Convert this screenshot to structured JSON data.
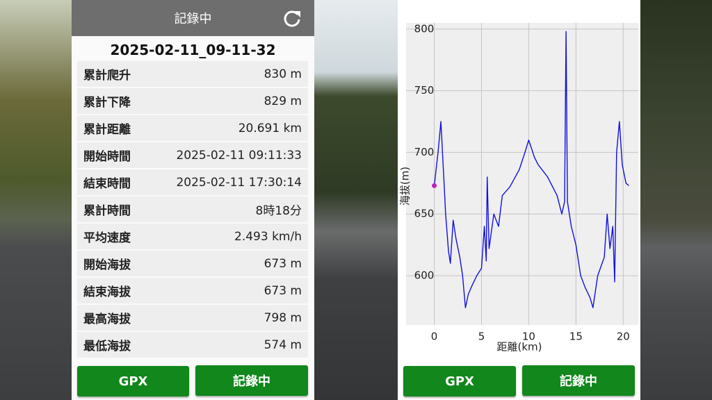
{
  "left_panel": {
    "header": {
      "title": "記錄中"
    },
    "track_name": "2025-02-11_09-11-32",
    "stats": [
      [
        "累計爬升",
        "830 m"
      ],
      [
        "累計下降",
        "829 m"
      ],
      [
        "累計距離",
        "20.691 km"
      ],
      [
        "開始時間",
        "2025-02-11 09:11:33"
      ],
      [
        "結束時間",
        "2025-02-11 17:30:14"
      ],
      [
        "累計時間",
        "8時18分"
      ],
      [
        "平均速度",
        "2.493 km/h"
      ],
      [
        "開始海拔",
        "673 m"
      ],
      [
        "結束海拔",
        "673 m"
      ],
      [
        "最高海拔",
        "798 m"
      ],
      [
        "最低海拔",
        "574 m"
      ]
    ],
    "buttons": [
      "GPX",
      "記錄中"
    ]
  },
  "right_panel": {
    "buttons": [
      "GPX",
      "記錄中"
    ]
  },
  "chart_data": {
    "type": "line",
    "x_label": "距離(km)",
    "y_label": "海拔(m)",
    "x": [
      0,
      0.4,
      0.7,
      1.0,
      1.2,
      1.5,
      1.7,
      2.0,
      2.3,
      2.7,
      3.0,
      3.3,
      3.6,
      4.0,
      4.5,
      5.0,
      5.3,
      5.5,
      5.6,
      5.8,
      6.3,
      6.8,
      7.2,
      8.0,
      9.0,
      9.6,
      10.0,
      10.6,
      11.0,
      12.0,
      13.0,
      13.5,
      13.8,
      13.95,
      14.1,
      14.5,
      15.0,
      15.5,
      16.0,
      16.5,
      16.8,
      17.3,
      18.0,
      18.3,
      18.6,
      18.9,
      19.1,
      19.3,
      19.6,
      19.9,
      20.3,
      20.6
    ],
    "series": [
      {
        "color": "#1010e0",
        "values": [
          673,
          700,
          725,
          680,
          650,
          620,
          610,
          645,
          630,
          615,
          600,
          574,
          585,
          592,
          600,
          606,
          640,
          612,
          680,
          622,
          650,
          640,
          665,
          672,
          686,
          700,
          710,
          696,
          690,
          680,
          665,
          650,
          660,
          798,
          660,
          640,
          625,
          600,
          590,
          582,
          574,
          600,
          615,
          650,
          622,
          640,
          595,
          700,
          725,
          690,
          675,
          673
        ]
      }
    ],
    "start_marker": {
      "x": 0,
      "y": 673,
      "color": "#c020c0"
    },
    "xlim": [
      -1,
      21.6
    ],
    "ylim": [
      560,
      805
    ],
    "xticks": [
      0,
      5,
      10,
      15,
      20
    ],
    "yticks": [
      600,
      650,
      700,
      750,
      800
    ],
    "grid": true
  }
}
